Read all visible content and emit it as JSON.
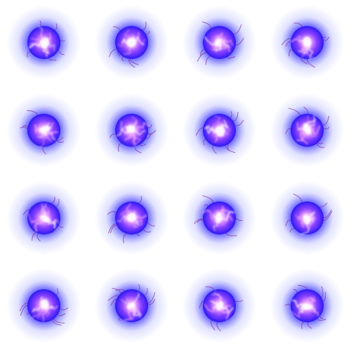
{
  "sprite_sheet": {
    "rows": 4,
    "columns": 4,
    "frame_count": 16,
    "colors": {
      "background": "#ffffff",
      "glow_outer": "#c9cbff",
      "glow_mid": "#5a55ff",
      "core_blue": "#2c18f2",
      "core_violet": "#8a3cff",
      "spark_pink": "#f3a6ff",
      "spark_white": "#ffffff",
      "tendril": "#7a2a9a"
    },
    "icon": "electric-plasma-orb"
  }
}
